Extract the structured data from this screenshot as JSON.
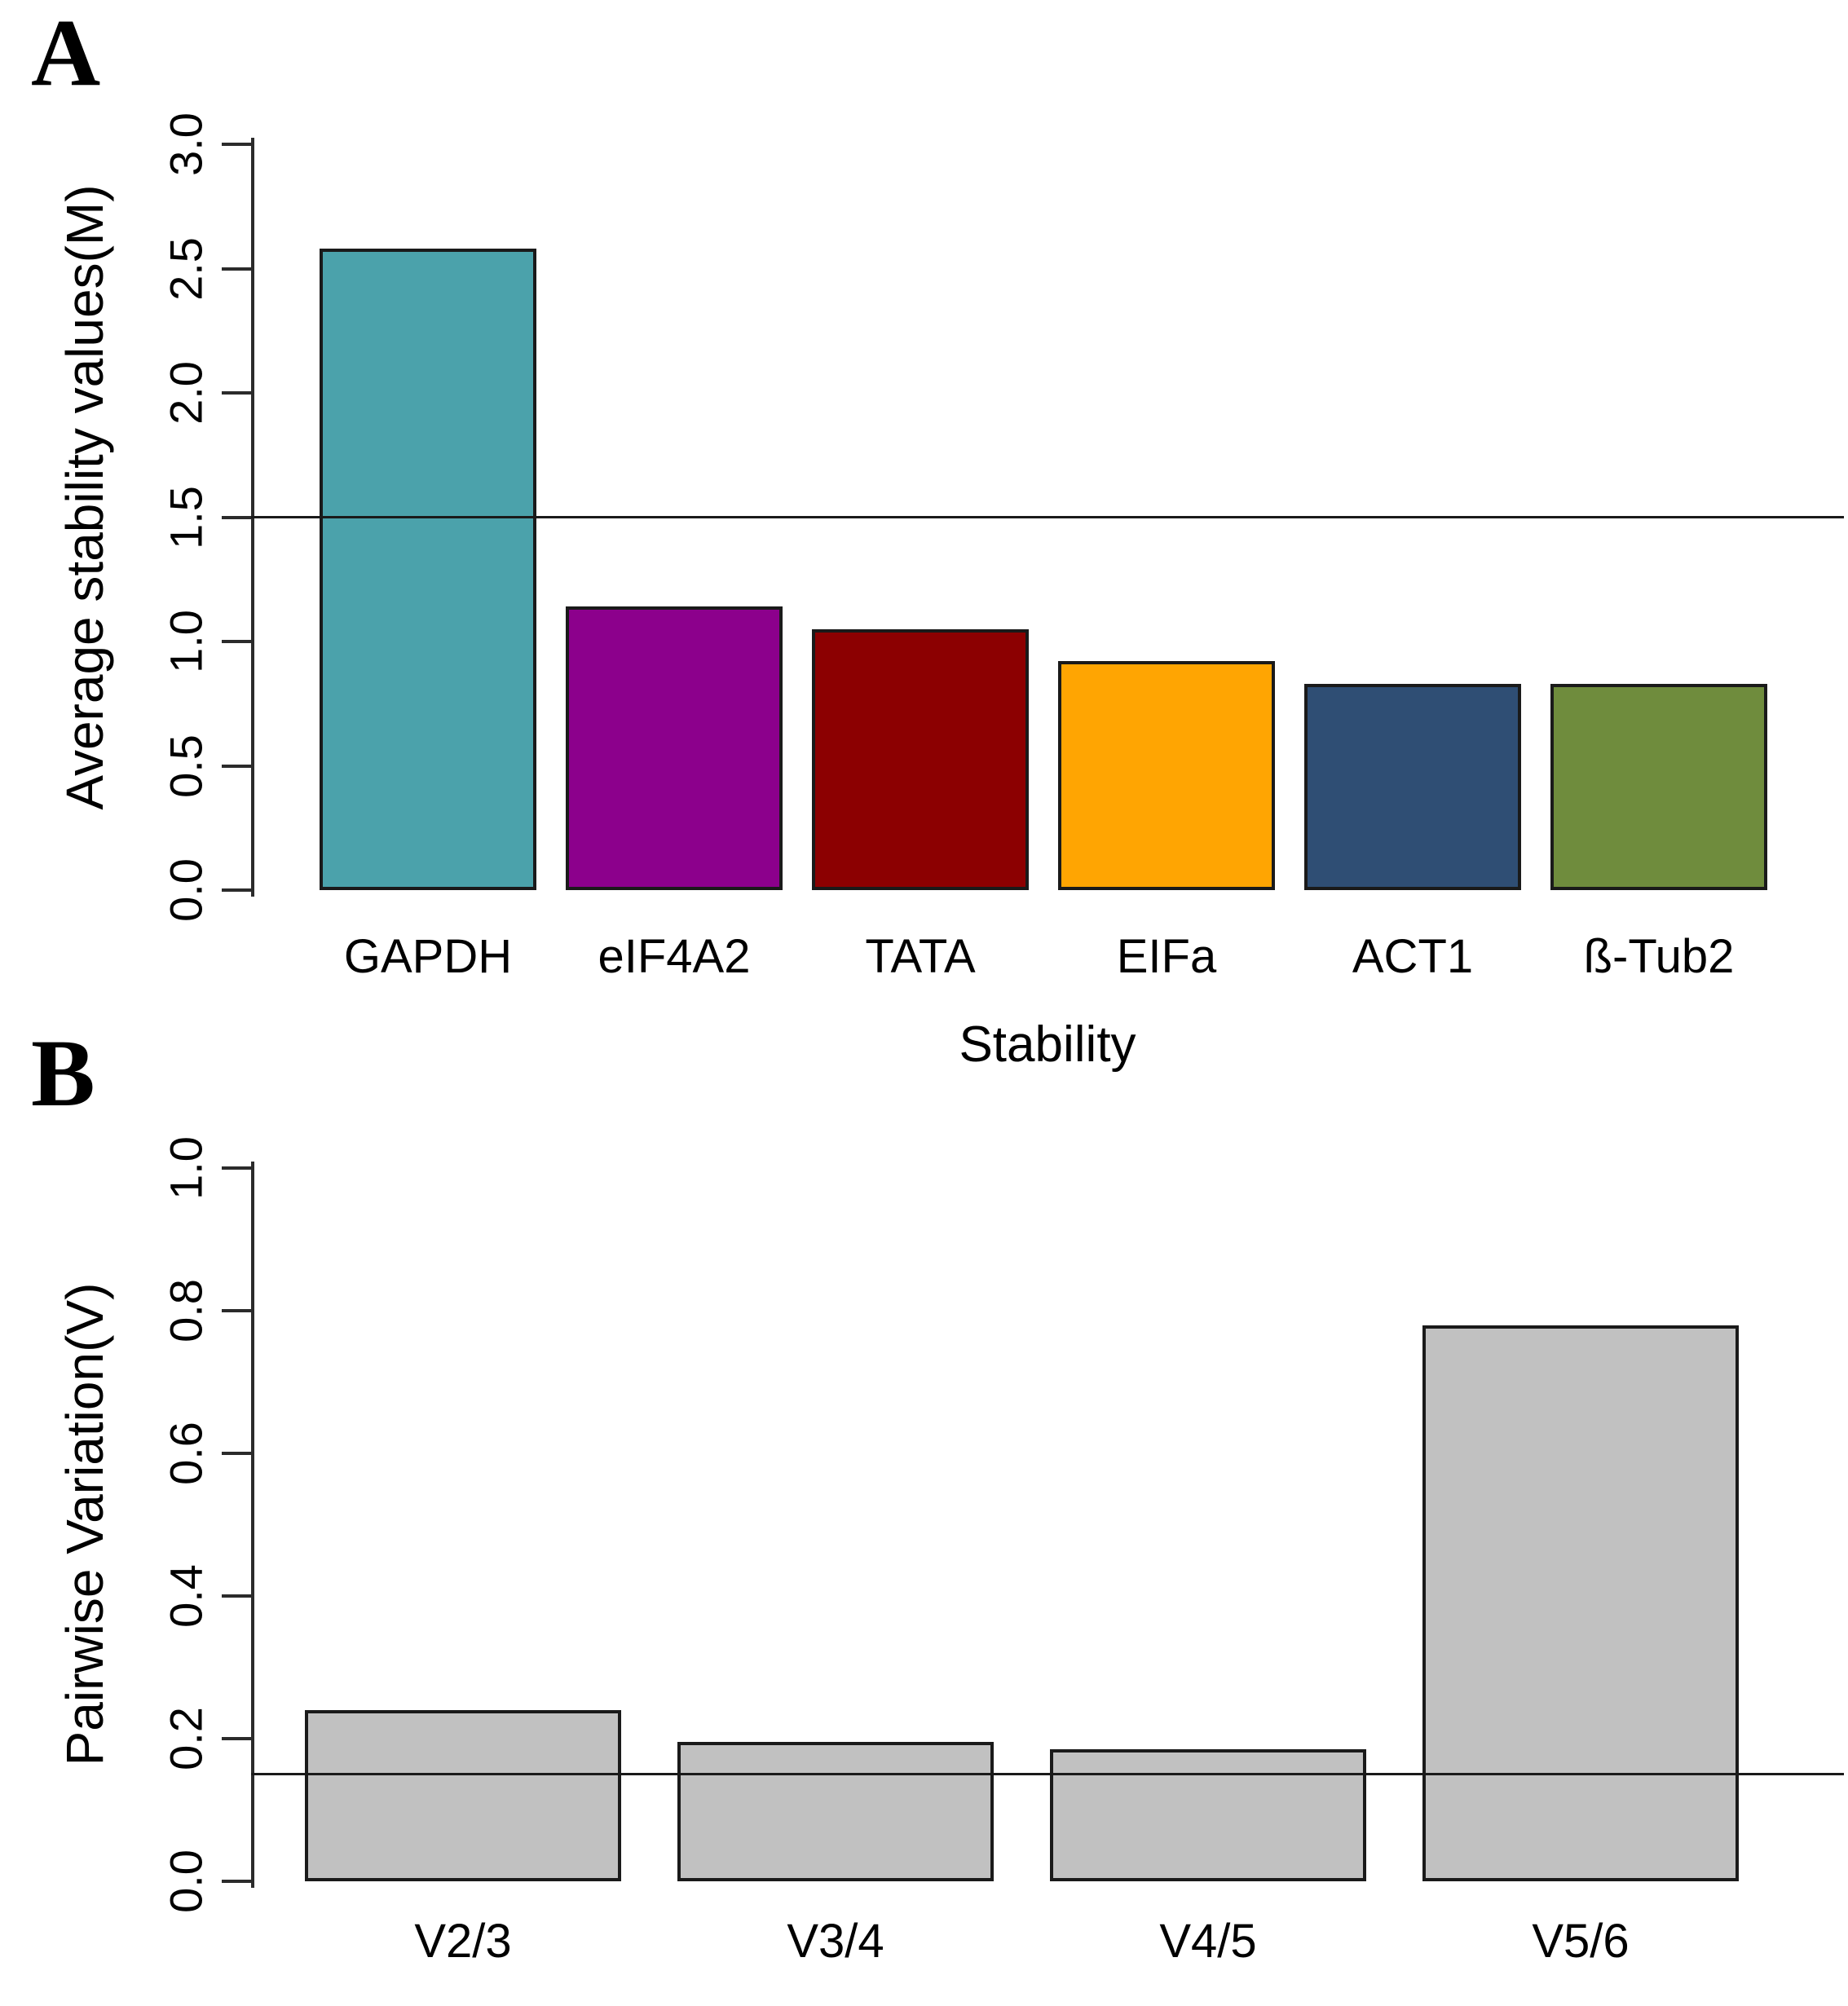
{
  "chart_data": [
    {
      "panel_label": "A",
      "type": "bar",
      "title": "",
      "xlabel": "Stability",
      "ylabel": "Average stability values(M)",
      "categories": [
        "GAPDH",
        "eIF4A2",
        "TATA",
        "EIFa",
        "ACT1",
        "ß-Tub2"
      ],
      "values": [
        2.58,
        1.14,
        1.05,
        0.92,
        0.83,
        0.83
      ],
      "bar_colors": [
        "#4BA2AB",
        "#8C008C",
        "#8C0001",
        "#FFA502",
        "#2F4E74",
        "#6F8C3D"
      ],
      "bar_border_color": "#1a1a1a",
      "ylim": [
        0,
        3.0
      ],
      "yticks": [
        "0.0",
        "0.5",
        "1.0",
        "1.5",
        "2.0",
        "2.5",
        "3.0"
      ],
      "threshold_line": 1.5,
      "grid": false,
      "legend": null
    },
    {
      "panel_label": "B",
      "type": "bar",
      "title": "",
      "xlabel": "",
      "ylabel": "Pairwise Variation(V)",
      "categories": [
        "V2/3",
        "V3/4",
        "V4/5",
        "V5/6"
      ],
      "values": [
        0.24,
        0.195,
        0.185,
        0.78
      ],
      "bar_colors": [
        "#C1C1C1",
        "#C1C1C1",
        "#C1C1C1",
        "#C1C1C1"
      ],
      "bar_border_color": "#1a1a1a",
      "ylim": [
        0,
        1.0
      ],
      "yticks": [
        "0.0",
        "0.2",
        "0.4",
        "0.6",
        "0.8",
        "1.0"
      ],
      "threshold_line": 0.15,
      "grid": false,
      "legend": null
    }
  ]
}
